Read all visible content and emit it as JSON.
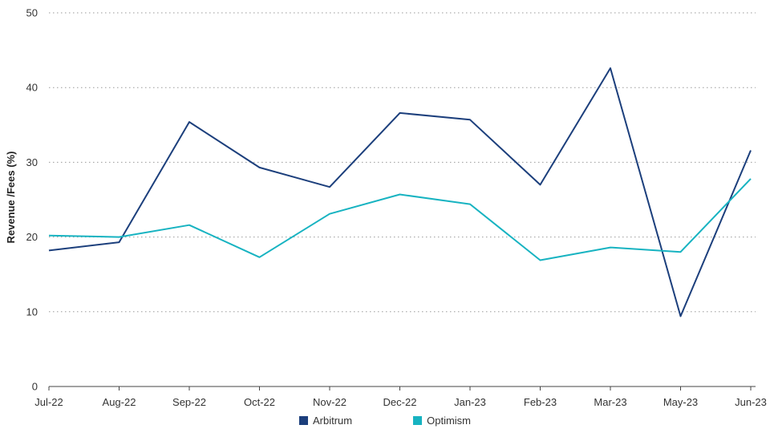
{
  "chart_data": {
    "type": "line",
    "title": "",
    "xlabel": "",
    "ylabel": "Revenue /Fees (%)",
    "ylim": [
      0,
      50
    ],
    "yticks": [
      0,
      10,
      20,
      30,
      40,
      50
    ],
    "grid": true,
    "legend_position": "bottom",
    "categories": [
      "Jul-22",
      "Aug-22",
      "Sep-22",
      "Oct-22",
      "Nov-22",
      "Dec-22",
      "Jan-23",
      "Feb-23",
      "Mar-23",
      "May-23",
      "Jun-23"
    ],
    "series": [
      {
        "name": "Arbitrum",
        "color": "#1c3f7c",
        "values": [
          18.2,
          19.3,
          35.4,
          29.3,
          26.7,
          36.6,
          35.7,
          27.0,
          42.6,
          9.4,
          31.6
        ]
      },
      {
        "name": "Optimism",
        "color": "#17b3c1",
        "values": [
          20.2,
          20.0,
          21.6,
          17.3,
          23.1,
          25.7,
          24.4,
          16.9,
          18.6,
          18.0,
          27.8
        ]
      }
    ]
  }
}
